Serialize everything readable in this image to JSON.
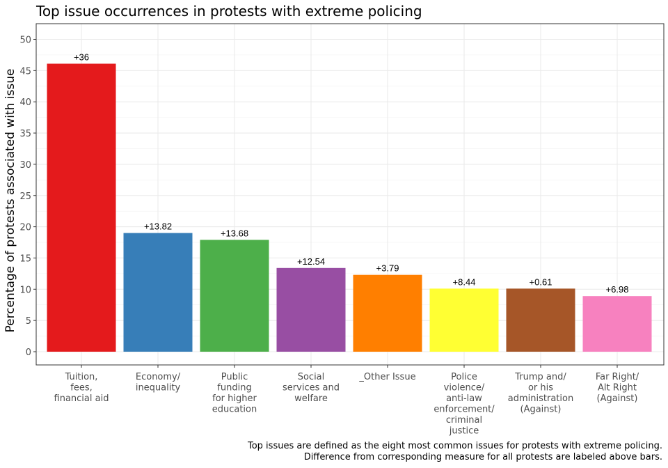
{
  "chart_data": {
    "type": "bar",
    "title": "Top issue occurrences in protests with extreme policing",
    "xlabel": "",
    "ylabel": "Percentage of protests associated with issue",
    "ylim": [
      0,
      52
    ],
    "yticks": [
      0,
      5,
      10,
      15,
      20,
      25,
      30,
      35,
      40,
      45,
      50
    ],
    "grid": true,
    "legend": "none",
    "categories": [
      [
        "Tuition,",
        "fees,",
        "financial aid"
      ],
      [
        "Economy/",
        "inequality"
      ],
      [
        "Public",
        "funding",
        "for higher",
        "education"
      ],
      [
        "Social",
        "services and",
        "welfare"
      ],
      [
        "_Other Issue"
      ],
      [
        "Police",
        "violence/",
        "anti-law",
        "enforcement/",
        "criminal",
        "justice"
      ],
      [
        "Trump and/",
        "or his",
        "administration",
        "(Against)"
      ],
      [
        "Far Right/",
        "Alt Right",
        "(Against)"
      ]
    ],
    "values": [
      46.1,
      19.0,
      17.9,
      13.4,
      12.3,
      10.1,
      10.1,
      8.9
    ],
    "labels": [
      "+36",
      "+13.82",
      "+13.68",
      "+12.54",
      "+3.79",
      "+8.44",
      "+0.61",
      "+6.98"
    ],
    "colors": [
      "#E41A1C",
      "#377EB8",
      "#4DAF4A",
      "#984EA3",
      "#FF7F00",
      "#FFFF33",
      "#A65628",
      "#F781BF"
    ],
    "caption": [
      "Top issues are defined as the eight most common issues for protests with extreme policing.",
      "Difference from corresponding measure for all protests are labeled above bars."
    ]
  }
}
